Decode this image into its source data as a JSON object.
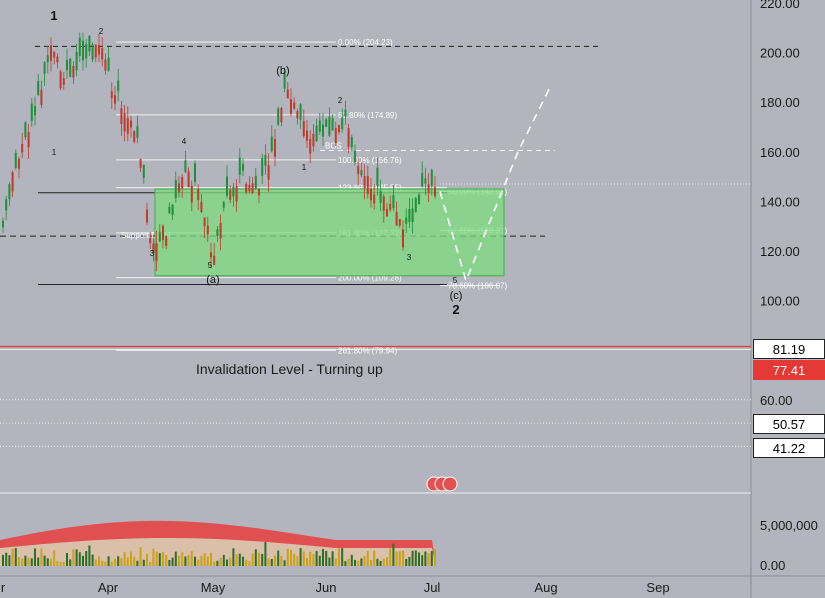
{
  "chart_data": {
    "type": "candlestick",
    "title": "",
    "y_axis": {
      "range": [
        0,
        220
      ],
      "ticks": [
        "220.00",
        "200.00",
        "180.00",
        "160.00",
        "140.00",
        "120.00",
        "100.00",
        "60.00",
        "0.00"
      ],
      "volume_tick": "5,000,000"
    },
    "x_axis": {
      "ticks": [
        "r",
        "Apr",
        "May",
        "Jun",
        "Jul",
        "Aug",
        "Sep"
      ]
    },
    "price_tags": [
      {
        "label": "81.19",
        "value": 81.19,
        "bg": "#ffffff",
        "fg": "#000000"
      },
      {
        "label": "77.41",
        "value": 77.41,
        "bg": "#e53935",
        "fg": "#ffffff"
      },
      {
        "label": "50.57",
        "value": 50.57,
        "bg": "#ffffff",
        "fg": "#000000"
      },
      {
        "label": "41.22",
        "value": 41.22,
        "bg": "#ffffff",
        "fg": "#000000"
      }
    ],
    "fib_levels": [
      {
        "label": "0.00% (204.23)",
        "value": 204.23
      },
      {
        "label": "61.80% (174.89)",
        "value": 174.89
      },
      {
        "label": "100.00% (156.76)",
        "value": 156.76
      },
      {
        "label": "123.60% (145.55)",
        "value": 145.55
      },
      {
        "label": "50.00% (143.93)",
        "value": 143.93
      },
      {
        "label": "61.80% (128.31)",
        "value": 128.31
      },
      {
        "label": "161.80% (127.32)",
        "value": 127.32
      },
      {
        "label": "200.00% (109.28)",
        "value": 109.28
      },
      {
        "label": "78.60% (106.07)",
        "value": 106.07
      },
      {
        "label": "261.80% (79.94)",
        "value": 79.94
      }
    ],
    "annotations": {
      "bos": "BOS",
      "support": "Support Level",
      "invalidation": "Invalidation Level - Turning up"
    },
    "wave_labels": [
      "1",
      "2",
      "1",
      "(b)",
      "2",
      "4",
      "1",
      "3",
      "5",
      "(a)",
      "3",
      "5",
      "(c)",
      "2"
    ],
    "levels": {
      "top_dashed": 202.5,
      "bos": 160.5,
      "support": 126.0,
      "invalidation": 81.5,
      "box_top": 145.0,
      "box_bottom": 110.0
    },
    "colors": {
      "up": "#1f8f3a",
      "down": "#c0392b",
      "zone_fill": "#7ddc7d",
      "zone_stroke": "#3cb043",
      "invalidation": "#e53935",
      "volume_ma": "#e05050"
    }
  }
}
